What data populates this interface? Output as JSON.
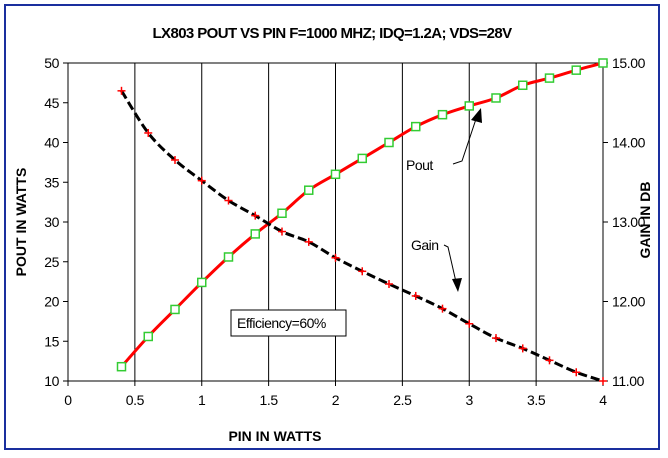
{
  "chart_data": {
    "type": "line",
    "title": "LX803  POUT VS PIN F=1000 MHZ; IDQ=1.2A; VDS=28V",
    "xlabel": "PIN IN WATTS",
    "ylabel": "POUT IN WATTS",
    "y2label": "GAIN IN DB",
    "xlim": [
      0,
      4
    ],
    "ylim": [
      10,
      50
    ],
    "y2lim": [
      11.0,
      15.0
    ],
    "x_ticks": [
      "0",
      "0.5",
      "1",
      "1.5",
      "2",
      "2.5",
      "3",
      "3.5",
      "4"
    ],
    "x_tick_values": [
      0,
      0.5,
      1,
      1.5,
      2,
      2.5,
      3,
      3.5,
      4
    ],
    "y_ticks": [
      "10",
      "15",
      "20",
      "25",
      "30",
      "35",
      "40",
      "45",
      "50"
    ],
    "y_tick_values": [
      10,
      15,
      20,
      25,
      30,
      35,
      40,
      45,
      50
    ],
    "y2_ticks": [
      "11.00",
      "12.00",
      "13.00",
      "14.00",
      "15.00"
    ],
    "y2_tick_values": [
      11,
      12,
      13,
      14,
      15
    ],
    "grid": "vertical",
    "series": [
      {
        "name": "Pout",
        "axis": "left",
        "color": "#ff0000",
        "marker": "square",
        "marker_color": "#33cc33",
        "x": [
          0.4,
          0.6,
          0.8,
          1.0,
          1.2,
          1.4,
          1.6,
          1.8,
          2.0,
          2.2,
          2.4,
          2.6,
          2.8,
          3.0,
          3.2,
          3.4,
          3.6,
          3.8,
          4.0
        ],
        "values": [
          11.8,
          15.6,
          19.0,
          22.4,
          25.6,
          28.5,
          31.1,
          34.0,
          36.0,
          38.0,
          40.0,
          42.0,
          43.5,
          44.6,
          45.6,
          47.2,
          48.1,
          49.1,
          50.0
        ]
      },
      {
        "name": "Gain",
        "axis": "right",
        "color": "#000000",
        "dash": true,
        "marker": "plus",
        "marker_color": "#ff0000",
        "x": [
          0.4,
          0.6,
          0.8,
          1.0,
          1.2,
          1.4,
          1.6,
          1.8,
          2.0,
          2.2,
          2.4,
          2.6,
          2.8,
          3.0,
          3.2,
          3.4,
          3.6,
          3.8,
          4.0
        ],
        "values": [
          14.65,
          14.12,
          13.78,
          13.52,
          13.27,
          13.08,
          12.88,
          12.75,
          12.55,
          12.38,
          12.22,
          12.07,
          11.91,
          11.72,
          11.54,
          11.41,
          11.26,
          11.11,
          11.0
        ]
      }
    ],
    "annotations": [
      {
        "text": "Pout",
        "series": "Pout"
      },
      {
        "text": "Gain",
        "series": "Gain"
      },
      {
        "text": "Efficiency=60%",
        "boxed": true
      }
    ]
  }
}
